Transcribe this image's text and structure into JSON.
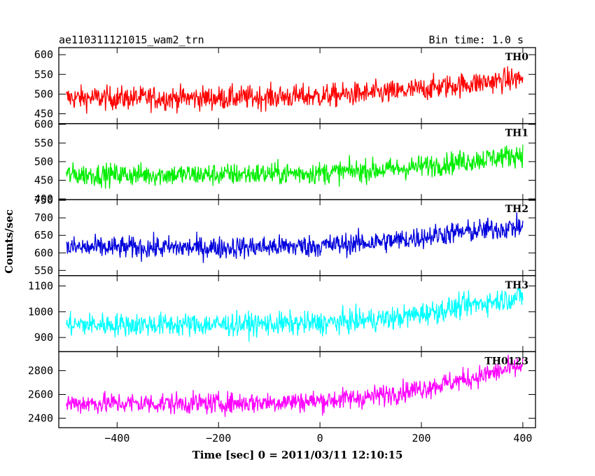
{
  "chart_data": {
    "type": "line",
    "title": "ae110311121015_wam2_trn",
    "subtitle": "Bin time: 1.0 s",
    "xlabel": "Time [sec] 0 = 2011/03/11 12:10:15",
    "ylabel": "Counts/sec",
    "xlim": [
      -515,
      425
    ],
    "xticks": [
      -400,
      -200,
      0,
      200,
      400
    ],
    "xtick_labels": [
      "−400",
      "−200",
      "0",
      "200",
      "400"
    ],
    "grid": false,
    "legend": "none",
    "series": [
      {
        "name": "TH0",
        "color": "#ff0000",
        "ylim": [
          425,
          618
        ],
        "yticks": [
          450,
          500,
          550,
          600
        ],
        "trend": {
          "x": [
            -500,
            -200,
            0,
            150,
            250,
            400
          ],
          "y": [
            490,
            490,
            495,
            505,
            520,
            540
          ]
        },
        "noise_amplitude": 30
      },
      {
        "name": "TH1",
        "color": "#00ee00",
        "ylim": [
          398,
          602
        ],
        "yticks": [
          400,
          450,
          500,
          550,
          600
        ],
        "trend": {
          "x": [
            -500,
            -200,
            0,
            150,
            250,
            400
          ],
          "y": [
            465,
            465,
            470,
            480,
            495,
            520
          ]
        },
        "noise_amplitude": 30
      },
      {
        "name": "TH2",
        "color": "#0000dd",
        "ylim": [
          535,
          752
        ],
        "yticks": [
          550,
          600,
          650,
          700,
          750
        ],
        "trend": {
          "x": [
            -500,
            -200,
            0,
            150,
            250,
            400
          ],
          "y": [
            615,
            615,
            620,
            635,
            655,
            675
          ]
        },
        "noise_amplitude": 32
      },
      {
        "name": "TH3",
        "color": "#00ffff",
        "ylim": [
          845,
          1140
        ],
        "yticks": [
          900,
          1000,
          1100
        ],
        "trend": {
          "x": [
            -500,
            -200,
            0,
            150,
            250,
            400
          ],
          "y": [
            950,
            950,
            955,
            975,
            1010,
            1060
          ]
        },
        "noise_amplitude": 45
      },
      {
        "name": "TH0123",
        "color": "#ff00ff",
        "ylim": [
          2320,
          2960
        ],
        "yticks": [
          2400,
          2600,
          2800
        ],
        "trend": {
          "x": [
            -500,
            -200,
            0,
            100,
            200,
            300,
            400
          ],
          "y": [
            2525,
            2525,
            2545,
            2580,
            2650,
            2740,
            2840
          ]
        },
        "noise_amplitude": 90
      }
    ]
  }
}
